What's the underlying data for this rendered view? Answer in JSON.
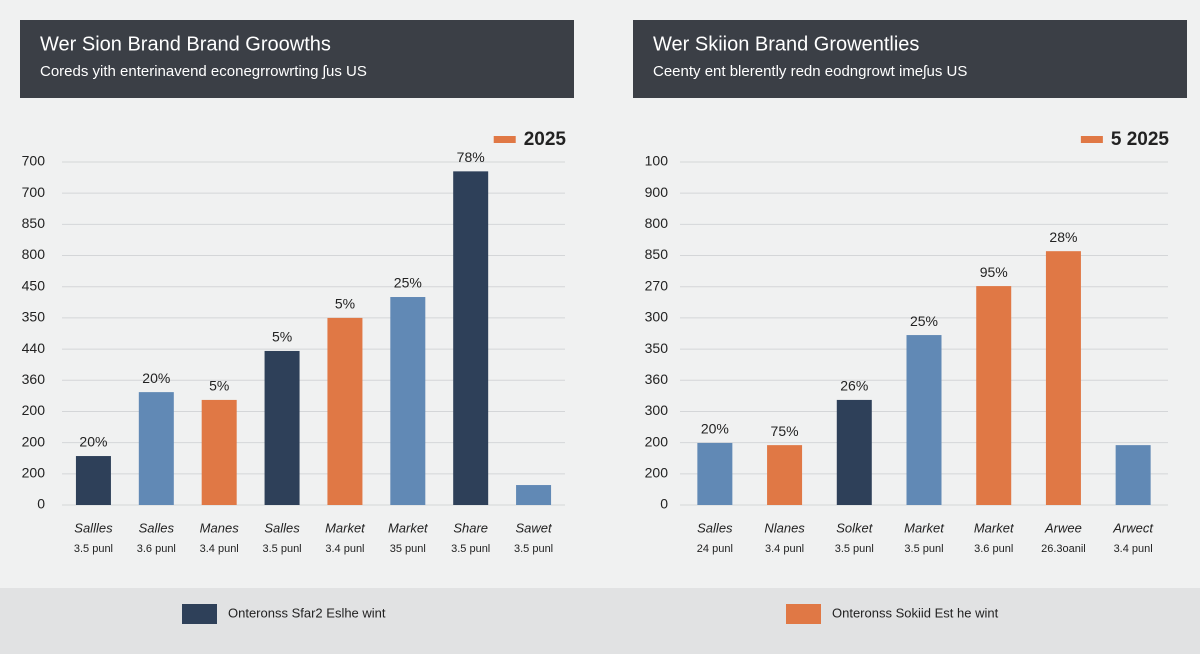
{
  "chart_data": [
    {
      "type": "bar",
      "title": "Wer Sion Brand Brand Groowths",
      "subtitle": "Coreds yith enterinavend econegrrowrting ʃus US",
      "categories": [
        "Sallles",
        "Salles",
        "Manes",
        "Salles",
        "Market",
        "Market",
        "Share",
        "Sawet"
      ],
      "sub_labels": [
        "3.5 punl",
        "3.6 punl",
        "3.4 punl",
        "3.5 punl",
        "3.4 punl",
        "35 punl",
        "3.5 punl",
        "3.5 punl"
      ],
      "values": [
        1.57,
        3.62,
        3.37,
        4.94,
        6.0,
        6.67,
        10.7,
        0.64
      ],
      "bar_labels": [
        "20%",
        "20%",
        "5%",
        "5%",
        "5%",
        "25%",
        "78%",
        null
      ],
      "colors": [
        "#2e4059",
        "#6189b5",
        "#e07845",
        "#2e4059",
        "#e07845",
        "#6189b5",
        "#2e4059",
        "#6189b5"
      ],
      "ylim": [
        0,
        11
      ],
      "yticks": [
        {
          "value": 0,
          "label": "0"
        },
        {
          "value": 1,
          "label": "200"
        },
        {
          "value": 2,
          "label": "200"
        },
        {
          "value": 3,
          "label": "200"
        },
        {
          "value": 4,
          "label": "360"
        },
        {
          "value": 5,
          "label": "440"
        },
        {
          "value": 6,
          "label": "350"
        },
        {
          "value": 7,
          "label": "450"
        },
        {
          "value": 8,
          "label": "800"
        },
        {
          "value": 9,
          "label": "850"
        },
        {
          "value": 10,
          "label": "700"
        },
        {
          "value": 11,
          "label": "700"
        }
      ],
      "grid": true,
      "legend": {
        "label": "2025",
        "color": "#e07845",
        "corner": "top-right"
      },
      "footer_legend": {
        "label": "Onteronss Sfar2 Eslhe wint",
        "color": "#2e4059"
      }
    },
    {
      "type": "bar",
      "title": "Wer Skiion Brand Growentlies",
      "subtitle": "Ceenty ent blerently redn eodngrowt imeʃus US",
      "categories": [
        "Salles",
        "Nlanes",
        "Solket",
        "Market",
        "Market",
        "Arwee",
        "Arwect"
      ],
      "sub_labels": [
        "24 punl",
        "3.4 punl",
        "3.5 punl",
        "3.5 punl",
        "3.6 punl",
        "26.3oanil",
        "3.4 punl"
      ],
      "values": [
        1.99,
        1.92,
        3.37,
        5.45,
        7.02,
        8.14,
        1.92
      ],
      "bar_labels": [
        "20%",
        "75%",
        "26%",
        "25%",
        "95%",
        "28%",
        null
      ],
      "colors": [
        "#6189b5",
        "#e07845",
        "#2e4059",
        "#6189b5",
        "#e07845",
        "#e07845",
        "#6189b5"
      ],
      "ylim": [
        0,
        11
      ],
      "yticks": [
        {
          "value": 0,
          "label": "0"
        },
        {
          "value": 1,
          "label": "200"
        },
        {
          "value": 2,
          "label": "200"
        },
        {
          "value": 3,
          "label": "300"
        },
        {
          "value": 4,
          "label": "360"
        },
        {
          "value": 5,
          "label": "350"
        },
        {
          "value": 6,
          "label": "300"
        },
        {
          "value": 7,
          "label": "270"
        },
        {
          "value": 8,
          "label": "850"
        },
        {
          "value": 9,
          "label": "800"
        },
        {
          "value": 10,
          "label": "900"
        },
        {
          "value": 11,
          "label": "100"
        }
      ],
      "grid": true,
      "legend": {
        "label": "5 2025",
        "color": "#e07845",
        "corner": "top-right"
      },
      "footer_legend": {
        "label": "Onteronss Sokiid Est he wint",
        "color": "#e07845"
      }
    }
  ]
}
